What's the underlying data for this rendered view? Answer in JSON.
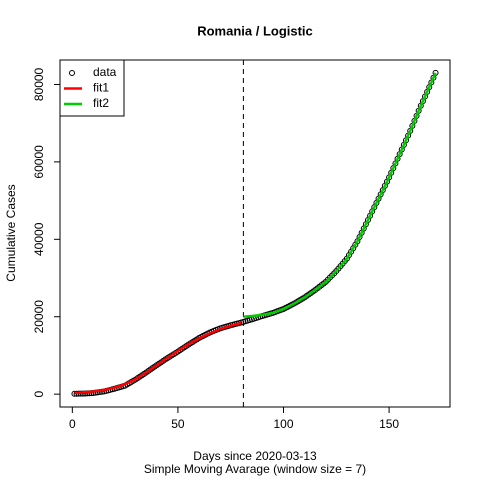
{
  "chart_data": {
    "type": "scatter",
    "title": "Romania / Logistic",
    "xlabel": "Days since 2020-03-13",
    "subtitle": "Simple Moving Avarage (window size = 7)",
    "ylabel": "Cumulative Cases",
    "xlim": [
      -5.84,
      178.84
    ],
    "ylim": [
      -3320,
      86320
    ],
    "xticks": [
      0,
      50,
      100,
      150
    ],
    "yticks": [
      0,
      20000,
      40000,
      60000,
      80000
    ],
    "vline": 81,
    "legend": "top-left",
    "series": [
      {
        "name": "data",
        "color": "#000000",
        "kind": "points",
        "x": [
          1,
          2,
          3,
          4,
          5,
          6,
          7,
          8,
          9,
          10,
          11,
          12,
          13,
          14,
          15,
          16,
          17,
          18,
          19,
          20,
          21,
          22,
          23,
          24,
          25,
          26,
          27,
          28,
          29,
          30,
          31,
          32,
          33,
          34,
          35,
          36,
          37,
          38,
          39,
          40,
          41,
          42,
          43,
          44,
          45,
          46,
          47,
          48,
          49,
          50,
          51,
          52,
          53,
          54,
          55,
          56,
          57,
          58,
          59,
          60,
          61,
          62,
          63,
          64,
          65,
          66,
          67,
          68,
          69,
          70,
          71,
          72,
          73,
          74,
          75,
          76,
          77,
          78,
          79,
          80,
          81,
          82,
          83,
          84,
          85,
          86,
          87,
          88,
          89,
          90,
          91,
          92,
          93,
          94,
          95,
          96,
          97,
          98,
          99,
          100,
          101,
          102,
          103,
          104,
          105,
          106,
          107,
          108,
          109,
          110,
          111,
          112,
          113,
          114,
          115,
          116,
          117,
          118,
          119,
          120,
          121,
          122,
          123,
          124,
          125,
          126,
          127,
          128,
          129,
          130,
          131,
          132,
          133,
          134,
          135,
          136,
          137,
          138,
          139,
          140,
          141,
          142,
          143,
          144,
          145,
          146,
          147,
          148,
          149,
          150,
          151,
          152,
          153,
          154,
          155,
          156,
          157,
          158,
          159,
          160,
          161,
          162,
          163,
          164,
          165,
          166,
          167,
          168,
          169,
          170,
          171,
          172
        ],
        "values": [
          100,
          110,
          120,
          135,
          150,
          180,
          210,
          240,
          270,
          300,
          380,
          460,
          540,
          620,
          700,
          840,
          980,
          1120,
          1260,
          1400,
          1560,
          1720,
          1880,
          2040,
          2200,
          2520,
          2840,
          3160,
          3480,
          3800,
          4160,
          4520,
          4880,
          5240,
          5600,
          5980,
          6360,
          6740,
          7120,
          7500,
          7860,
          8220,
          8580,
          8940,
          9300,
          9640,
          9980,
          10320,
          10660,
          11000,
          11360,
          11720,
          12080,
          12440,
          12800,
          13140,
          13480,
          13820,
          14160,
          14500,
          14780,
          15060,
          15340,
          15620,
          15900,
          16120,
          16340,
          16560,
          16780,
          17000,
          17160,
          17320,
          17480,
          17640,
          17800,
          17940,
          18080,
          18220,
          18360,
          18500,
          18660,
          18820,
          18980,
          19140,
          19300,
          19480,
          19660,
          19840,
          20020,
          20200,
          20360,
          20520,
          20680,
          20840,
          21000,
          21200,
          21400,
          21600,
          21800,
          22000,
          22280,
          22560,
          22840,
          23120,
          23400,
          23720,
          24040,
          24360,
          24680,
          25000,
          25380,
          25760,
          26140,
          26520,
          26900,
          27320,
          27740,
          28160,
          28580,
          29000,
          29560,
          30120,
          30680,
          31240,
          31800,
          32440,
          33080,
          33720,
          34360,
          35000,
          35900,
          36800,
          37700,
          38600,
          39500,
          40600,
          41700,
          42800,
          43900,
          45000,
          46100,
          47200,
          48300,
          49400,
          50500,
          51600,
          52700,
          53800,
          54900,
          56000,
          57200,
          58400,
          59600,
          60800,
          62000,
          63200,
          64400,
          65600,
          66800,
          68000,
          69300,
          70600,
          71900,
          73200,
          74500,
          75700,
          76900,
          78100,
          79300,
          80500,
          81750,
          83000
        ]
      },
      {
        "name": "fit1",
        "color": "#ff0000",
        "kind": "line",
        "x": [
          1,
          5,
          10,
          15,
          20,
          25,
          30,
          35,
          40,
          45,
          50,
          55,
          60,
          65,
          70,
          75,
          80
        ],
        "values": [
          300,
          450,
          700,
          1100,
          1700,
          2600,
          3900,
          5600,
          7500,
          9400,
          11200,
          12900,
          14400,
          15700,
          16800,
          17700,
          18400
        ]
      },
      {
        "name": "fit2",
        "color": "#00cd00",
        "kind": "line",
        "x": [
          81,
          85,
          90,
          95,
          100,
          105,
          110,
          115,
          120,
          125,
          130,
          135,
          140,
          145,
          150,
          155,
          160,
          165,
          170,
          172
        ],
        "values": [
          20000,
          20200,
          20500,
          21000,
          22000,
          23400,
          25000,
          26900,
          29000,
          31800,
          35000,
          39500,
          45000,
          50500,
          56000,
          62000,
          68000,
          74500,
          80500,
          83000
        ]
      }
    ]
  }
}
